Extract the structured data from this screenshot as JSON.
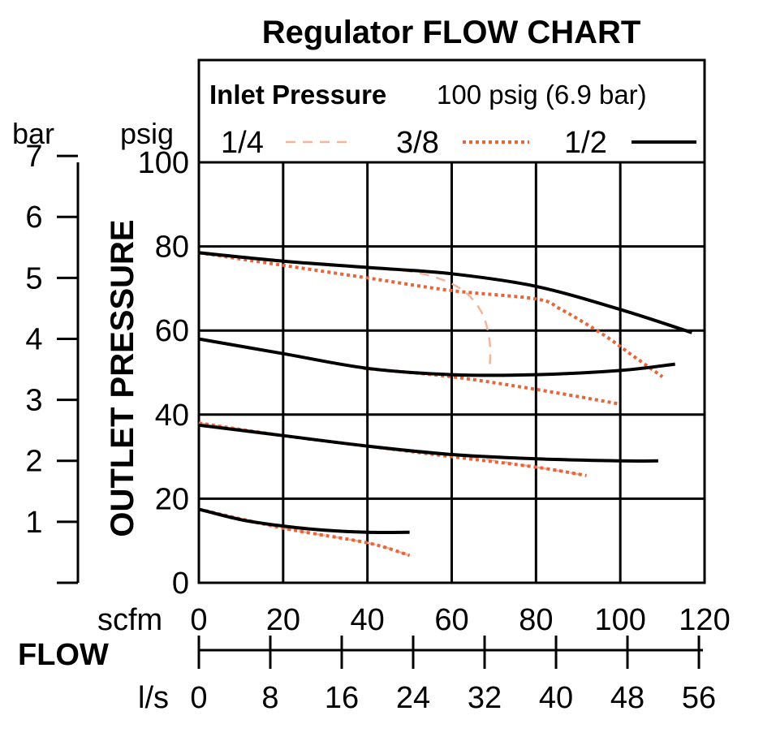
{
  "chart_data": {
    "type": "line",
    "title": "Regulator FLOW CHART",
    "ylabel": "OUTLET PRESSURE",
    "xlabel": "FLOW",
    "y_unit_left": "bar",
    "y_unit_right": "psig",
    "x_unit_top": "scfm",
    "x_unit_bottom": "l/s",
    "xlim": [
      0,
      120
    ],
    "ylim": [
      0,
      100
    ],
    "grid": true,
    "x_ticks": [
      "0",
      "20",
      "40",
      "60",
      "80",
      "100",
      "120"
    ],
    "y_ticks": [
      "0",
      "20",
      "40",
      "60",
      "80",
      "100"
    ],
    "bar_ticks": [
      "1",
      "2",
      "3",
      "4",
      "5",
      "6",
      "7"
    ],
    "ls_ticks": [
      "0",
      "8",
      "16",
      "24",
      "32",
      "40",
      "48",
      "56"
    ],
    "legend": {
      "title_bold": "Inlet Pressure",
      "title_rest": "100 psig (6.9 bar)",
      "placement": "top",
      "entries": [
        {
          "label": "1/4",
          "color": "#f2b49a",
          "dash": "dashed"
        },
        {
          "label": "3/8",
          "color": "#e8643a",
          "dash": "dotted"
        },
        {
          "label": "1/2",
          "color": "#000000",
          "dash": "solid"
        }
      ]
    },
    "series": [
      {
        "name": "1/2",
        "color": "#000000",
        "dash": "solid",
        "points": [
          [
            0,
            78.5
          ],
          [
            20,
            76.5
          ],
          [
            40,
            75
          ],
          [
            60,
            73.5
          ],
          [
            80,
            70.5
          ],
          [
            100,
            65
          ],
          [
            117,
            59.5
          ]
        ]
      },
      {
        "name": "1/2",
        "color": "#000000",
        "dash": "solid",
        "points": [
          [
            0,
            58
          ],
          [
            20,
            54.5
          ],
          [
            40,
            51
          ],
          [
            60,
            49.5
          ],
          [
            80,
            49.5
          ],
          [
            100,
            50.5
          ],
          [
            113,
            52
          ]
        ]
      },
      {
        "name": "1/2",
        "color": "#000000",
        "dash": "solid",
        "points": [
          [
            0,
            37.5
          ],
          [
            20,
            35
          ],
          [
            40,
            32.5
          ],
          [
            60,
            30.5
          ],
          [
            80,
            29.5
          ],
          [
            100,
            29
          ],
          [
            109,
            29
          ]
        ]
      },
      {
        "name": "1/2",
        "color": "#000000",
        "dash": "solid",
        "points": [
          [
            0,
            17.5
          ],
          [
            10,
            15
          ],
          [
            20,
            13.5
          ],
          [
            30,
            12.5
          ],
          [
            40,
            12
          ],
          [
            50,
            12
          ]
        ]
      },
      {
        "name": "3/8",
        "color": "#e8643a",
        "dash": "dotted",
        "points": [
          [
            0,
            78.5
          ],
          [
            20,
            75.5
          ],
          [
            40,
            72.5
          ],
          [
            60,
            69.5
          ],
          [
            80,
            67.5
          ],
          [
            86,
            65
          ],
          [
            96,
            59
          ],
          [
            103,
            54
          ],
          [
            110,
            49
          ]
        ]
      },
      {
        "name": "3/8",
        "color": "#e8643a",
        "dash": "dotted",
        "points": [
          [
            39,
            51
          ],
          [
            60,
            49
          ],
          [
            80,
            46
          ],
          [
            100,
            42.5
          ]
        ]
      },
      {
        "name": "3/8",
        "color": "#e8643a",
        "dash": "dotted",
        "points": [
          [
            0,
            38
          ],
          [
            20,
            35
          ],
          [
            40,
            32.5
          ],
          [
            60,
            30
          ],
          [
            80,
            27.5
          ],
          [
            92,
            25.5
          ]
        ]
      },
      {
        "name": "3/8",
        "color": "#e8643a",
        "dash": "dotted",
        "points": [
          [
            0,
            17.5
          ],
          [
            20,
            13
          ],
          [
            40,
            9.5
          ],
          [
            50,
            6.5
          ]
        ]
      },
      {
        "name": "1/4",
        "color": "#f2b49a",
        "dash": "dashed",
        "points": [
          [
            0,
            78.5
          ],
          [
            20,
            76.5
          ],
          [
            40,
            75
          ],
          [
            53,
            73.5
          ],
          [
            62,
            70
          ],
          [
            67,
            64.5
          ],
          [
            69,
            57.5
          ],
          [
            69,
            50.5
          ]
        ]
      },
      {
        "name": "1/4",
        "color": "#f2b49a",
        "dash": "dashed",
        "points": [
          [
            0,
            38
          ],
          [
            20,
            35
          ],
          [
            40,
            32.5
          ],
          [
            60,
            30.5
          ],
          [
            80,
            27.5
          ],
          [
            92,
            25.5
          ]
        ]
      },
      {
        "name": "1/4",
        "color": "#f2b49a",
        "dash": "dashed",
        "points": [
          [
            0,
            17.5
          ],
          [
            20,
            13
          ],
          [
            40,
            9.5
          ],
          [
            50,
            6.5
          ]
        ]
      }
    ]
  }
}
